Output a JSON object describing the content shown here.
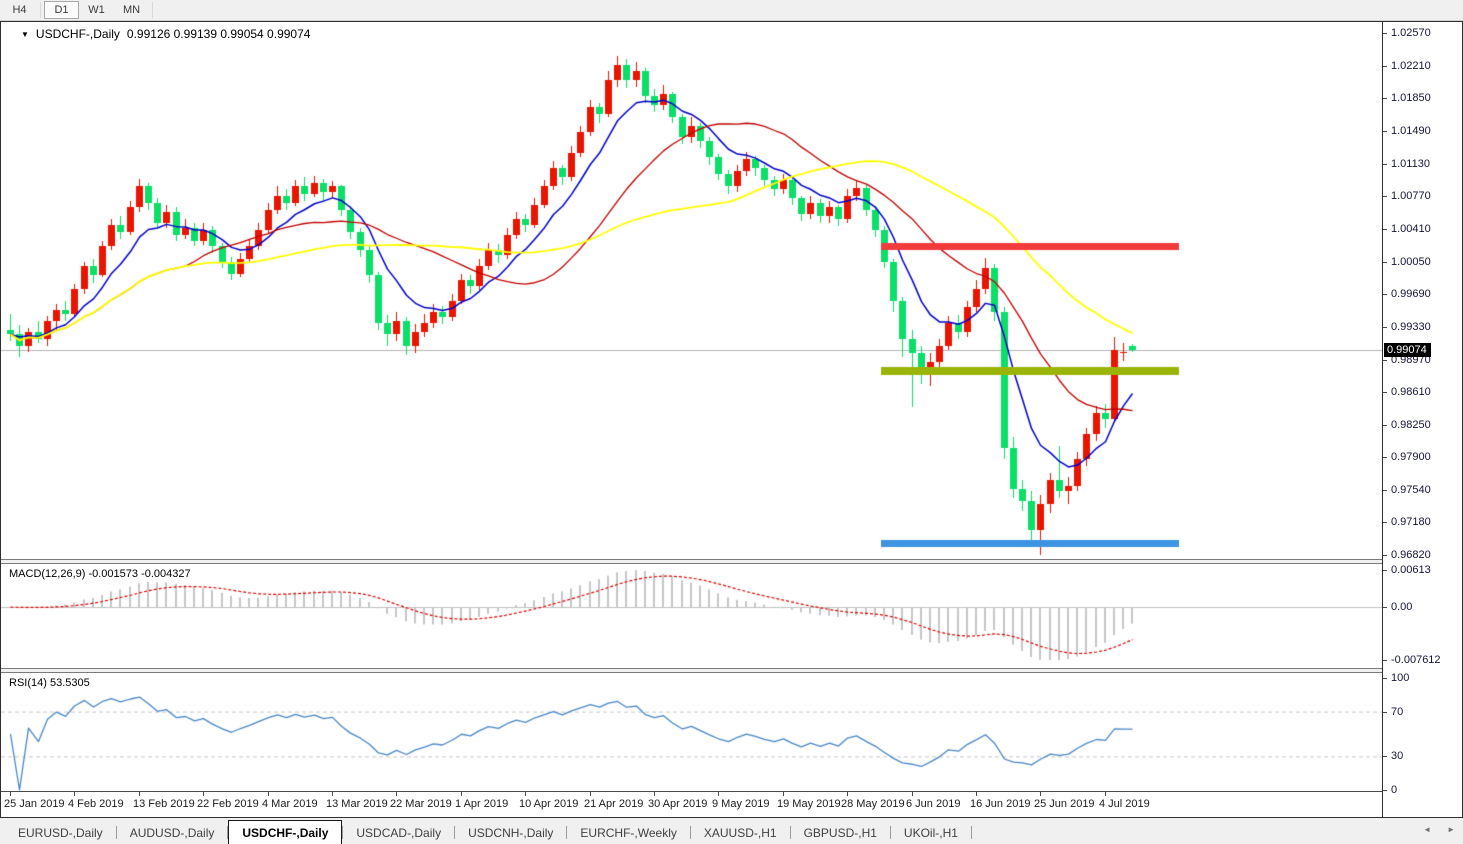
{
  "toolbar": {
    "buttons": [
      {
        "label": "H4",
        "active": false
      },
      {
        "label": "D1",
        "active": true
      },
      {
        "label": "W1",
        "active": false
      },
      {
        "label": "MN",
        "active": false
      }
    ]
  },
  "chart": {
    "title_symbol": "USDCHF-,Daily",
    "title_ohlc": "0.99126 0.99139 0.99054 0.99074",
    "macd_label": "MACD(12,26,9) -0.001573 -0.004327",
    "rsi_label": "RSI(14) 53.5305",
    "price_tag": "0.99074"
  },
  "chart_data": {
    "type": "candlestick",
    "symbol": "USDCHF-",
    "timeframe": "Daily",
    "last_bar": {
      "open": 0.99126,
      "high": 0.99139,
      "low": 0.99054,
      "close": 0.99074
    },
    "current_price": 0.99074,
    "price_axis_labels": [
      "1.02570",
      "1.02210",
      "1.01850",
      "1.01490",
      "1.01130",
      "1.00770",
      "1.00410",
      "1.00050",
      "0.99690",
      "0.99330",
      "0.98970",
      "0.98610",
      "0.98250",
      "0.97900",
      "0.97540",
      "0.97180",
      "0.96820"
    ],
    "date_axis_labels": [
      {
        "label": "25 Jan 2019",
        "index": 0
      },
      {
        "label": "4 Feb 2019",
        "index": 7
      },
      {
        "label": "13 Feb 2019",
        "index": 14
      },
      {
        "label": "22 Feb 2019",
        "index": 21
      },
      {
        "label": "4 Mar 2019",
        "index": 28
      },
      {
        "label": "13 Mar 2019",
        "index": 35
      },
      {
        "label": "22 Mar 2019",
        "index": 42
      },
      {
        "label": "1 Apr 2019",
        "index": 49
      },
      {
        "label": "10 Apr 2019",
        "index": 56
      },
      {
        "label": "21 Apr 2019",
        "index": 63
      },
      {
        "label": "30 Apr 2019",
        "index": 70
      },
      {
        "label": "9 May 2019",
        "index": 77
      },
      {
        "label": "19 May 2019",
        "index": 84
      },
      {
        "label": "28 May 2019",
        "index": 91
      },
      {
        "label": "6 Jun 2019",
        "index": 98
      },
      {
        "label": "16 Jun 2019",
        "index": 105
      },
      {
        "label": "25 Jun 2019",
        "index": 112
      },
      {
        "label": "4 Jul 2019",
        "index": 119
      }
    ],
    "candles": [
      [
        0.993,
        0.9948,
        0.9918,
        0.9925
      ],
      [
        0.9925,
        0.9935,
        0.99,
        0.9912
      ],
      [
        0.9912,
        0.9932,
        0.9906,
        0.9928
      ],
      [
        0.9928,
        0.994,
        0.9916,
        0.992
      ],
      [
        0.992,
        0.9945,
        0.9912,
        0.994
      ],
      [
        0.994,
        0.9958,
        0.993,
        0.9952
      ],
      [
        0.9952,
        0.9962,
        0.994,
        0.9948
      ],
      [
        0.9948,
        0.998,
        0.9944,
        0.9975
      ],
      [
        0.9975,
        1.0005,
        0.997,
        1.0
      ],
      [
        1.0,
        1.0008,
        0.9982,
        0.999
      ],
      [
        0.999,
        1.0028,
        0.9988,
        1.0022
      ],
      [
        1.0022,
        1.0052,
        1.0018,
        1.0045
      ],
      [
        1.0045,
        1.0055,
        1.003,
        1.0038
      ],
      [
        1.0038,
        1.0072,
        1.0034,
        1.0065
      ],
      [
        1.0065,
        1.0096,
        1.006,
        1.0088
      ],
      [
        1.0088,
        1.0092,
        1.0062,
        1.007
      ],
      [
        1.007,
        1.0075,
        1.0042,
        1.0048
      ],
      [
        1.0048,
        1.0068,
        1.0042,
        1.006
      ],
      [
        1.006,
        1.0065,
        1.0028,
        1.0035
      ],
      [
        1.0035,
        1.0052,
        1.003,
        1.0042
      ],
      [
        1.0042,
        1.0048,
        1.0022,
        1.0028
      ],
      [
        1.0028,
        1.0048,
        1.0024,
        1.004
      ],
      [
        1.004,
        1.0044,
        1.0015,
        1.0022
      ],
      [
        1.0022,
        1.0026,
        0.9998,
        1.0005
      ],
      [
        1.0005,
        1.001,
        0.9985,
        0.9992
      ],
      [
        0.9992,
        1.0015,
        0.9988,
        1.0008
      ],
      [
        1.0008,
        1.003,
        1.0005,
        1.0022
      ],
      [
        1.0022,
        1.0048,
        1.0018,
        1.004
      ],
      [
        1.004,
        1.007,
        1.0036,
        1.0062
      ],
      [
        1.0062,
        1.0088,
        1.0058,
        1.0078
      ],
      [
        1.0078,
        1.0085,
        1.0062,
        1.007
      ],
      [
        1.007,
        1.0095,
        1.0066,
        1.0088
      ],
      [
        1.0088,
        1.0098,
        1.0072,
        1.008
      ],
      [
        1.008,
        1.01,
        1.0076,
        1.0092
      ],
      [
        1.0092,
        1.0096,
        1.0072,
        1.0082
      ],
      [
        1.0082,
        1.0094,
        1.0075,
        1.0088
      ],
      [
        1.0088,
        1.009,
        1.0055,
        1.0062
      ],
      [
        1.0062,
        1.0066,
        1.003,
        1.0038
      ],
      [
        1.0038,
        1.0042,
        1.001,
        1.0018
      ],
      [
        1.0018,
        1.0022,
        0.9982,
        0.999
      ],
      [
        0.999,
        0.9994,
        0.993,
        0.9938
      ],
      [
        0.9938,
        0.9946,
        0.9912,
        0.9925
      ],
      [
        0.9925,
        0.995,
        0.9918,
        0.994
      ],
      [
        0.994,
        0.9944,
        0.9902,
        0.9912
      ],
      [
        0.9912,
        0.9936,
        0.9905,
        0.9928
      ],
      [
        0.9928,
        0.9948,
        0.9922,
        0.9938
      ],
      [
        0.9938,
        0.9958,
        0.9932,
        0.995
      ],
      [
        0.995,
        0.9956,
        0.9936,
        0.9944
      ],
      [
        0.9944,
        0.997,
        0.994,
        0.9962
      ],
      [
        0.9962,
        0.9992,
        0.9958,
        0.9985
      ],
      [
        0.9985,
        0.999,
        0.997,
        0.9978
      ],
      [
        0.9978,
        1.0008,
        0.9974,
        1.0
      ],
      [
        1.0,
        1.0026,
        0.9996,
        1.0018
      ],
      [
        1.0018,
        1.0025,
        1.0004,
        1.0012
      ],
      [
        1.0012,
        1.0042,
        1.0008,
        1.0035
      ],
      [
        1.0035,
        1.006,
        1.003,
        1.0052
      ],
      [
        1.0052,
        1.0058,
        1.0038,
        1.0045
      ],
      [
        1.0045,
        1.0075,
        1.0042,
        1.0068
      ],
      [
        1.0068,
        1.0095,
        1.0064,
        1.0088
      ],
      [
        1.0088,
        1.0116,
        1.0084,
        1.0108
      ],
      [
        1.0108,
        1.0112,
        1.009,
        1.0098
      ],
      [
        1.0098,
        1.0132,
        1.0094,
        1.0125
      ],
      [
        1.0125,
        1.0155,
        1.012,
        1.0148
      ],
      [
        1.0148,
        1.0183,
        1.0144,
        1.0175
      ],
      [
        1.0175,
        1.018,
        1.0158,
        1.0168
      ],
      [
        1.0168,
        1.0215,
        1.0164,
        1.0205
      ],
      [
        1.0205,
        1.0232,
        1.0198,
        1.0222
      ],
      [
        1.0222,
        1.0228,
        1.0196,
        1.0205
      ],
      [
        1.0205,
        1.0225,
        1.0198,
        1.0215
      ],
      [
        1.0215,
        1.0218,
        1.018,
        1.0188
      ],
      [
        1.0188,
        1.0195,
        1.017,
        1.0178
      ],
      [
        1.0178,
        1.02,
        1.0172,
        1.019
      ],
      [
        1.019,
        1.0192,
        1.0158,
        1.0165
      ],
      [
        1.0165,
        1.0168,
        1.0135,
        1.0142
      ],
      [
        1.0142,
        1.0165,
        1.0136,
        1.0155
      ],
      [
        1.0155,
        1.0158,
        1.013,
        1.0138
      ],
      [
        1.0138,
        1.0142,
        1.0112,
        1.012
      ],
      [
        1.012,
        1.0124,
        1.0095,
        1.0102
      ],
      [
        1.0102,
        1.0106,
        1.008,
        1.0088
      ],
      [
        1.0088,
        1.0112,
        1.0082,
        1.0105
      ],
      [
        1.0105,
        1.0126,
        1.01,
        1.0118
      ],
      [
        1.0118,
        1.0122,
        1.01,
        1.0108
      ],
      [
        1.0108,
        1.0112,
        1.0088,
        1.0095
      ],
      [
        1.0095,
        1.01,
        1.0078,
        1.0085
      ],
      [
        1.0085,
        1.0102,
        1.008,
        1.0095
      ],
      [
        1.0095,
        1.0098,
        1.0068,
        1.0075
      ],
      [
        1.0075,
        1.0078,
        1.005,
        1.0058
      ],
      [
        1.0058,
        1.0078,
        1.0052,
        1.007
      ],
      [
        1.007,
        1.0074,
        1.0048,
        1.0055
      ],
      [
        1.0055,
        1.0072,
        1.0048,
        1.0065
      ],
      [
        1.0065,
        1.0068,
        1.0044,
        1.0052
      ],
      [
        1.0052,
        1.0085,
        1.0048,
        1.0078
      ],
      [
        1.0078,
        1.0095,
        1.0072,
        1.0086
      ],
      [
        1.0086,
        1.009,
        1.0055,
        1.0062
      ],
      [
        1.0062,
        1.0066,
        1.0032,
        1.004
      ],
      [
        1.004,
        1.0044,
        0.9998,
        1.0005
      ],
      [
        1.0005,
        1.0008,
        0.995,
        0.9962
      ],
      [
        0.9962,
        0.9966,
        0.99,
        0.992
      ],
      [
        0.992,
        0.993,
        0.9845,
        0.9905
      ],
      [
        0.9905,
        0.9912,
        0.987,
        0.988
      ],
      [
        0.988,
        0.9905,
        0.9868,
        0.9895
      ],
      [
        0.9895,
        0.992,
        0.9888,
        0.9912
      ],
      [
        0.9912,
        0.9945,
        0.9908,
        0.9938
      ],
      [
        0.9938,
        0.9946,
        0.992,
        0.9928
      ],
      [
        0.9928,
        0.9962,
        0.9922,
        0.9955
      ],
      [
        0.9955,
        0.9985,
        0.995,
        0.9975
      ],
      [
        0.9975,
        1.0009,
        0.997,
        0.9998
      ],
      [
        0.9998,
        1.0002,
        0.994,
        0.995
      ],
      [
        0.995,
        0.9955,
        0.9788,
        0.98
      ],
      [
        0.98,
        0.9812,
        0.9745,
        0.9755
      ],
      [
        0.9755,
        0.9765,
        0.973,
        0.9742
      ],
      [
        0.9742,
        0.9752,
        0.9695,
        0.971
      ],
      [
        0.971,
        0.9748,
        0.9682,
        0.9738
      ],
      [
        0.9738,
        0.9772,
        0.9728,
        0.9765
      ],
      [
        0.9765,
        0.9802,
        0.9745,
        0.9752
      ],
      [
        0.9752,
        0.9768,
        0.9738,
        0.9758
      ],
      [
        0.9758,
        0.9795,
        0.9752,
        0.9788
      ],
      [
        0.9788,
        0.9822,
        0.978,
        0.9815
      ],
      [
        0.9815,
        0.9846,
        0.9808,
        0.9838
      ],
      [
        0.9838,
        0.9848,
        0.9822,
        0.9832
      ],
      [
        0.9832,
        0.9922,
        0.9828,
        0.9908
      ],
      [
        0.9904,
        0.9916,
        0.9896,
        0.9906
      ],
      [
        0.99126,
        0.99139,
        0.99054,
        0.99074
      ]
    ],
    "moving_averages": [
      {
        "name": "fast-ma",
        "type": "ema",
        "period": 8,
        "color": "#0000c8",
        "width": 1.5
      },
      {
        "name": "mid-ma",
        "type": "sma",
        "period": 20,
        "color": "#c00000",
        "width": 1.3
      },
      {
        "name": "slow-ma",
        "type": "sma",
        "period": 40,
        "color": "#ffff00",
        "width": 1.8
      }
    ],
    "horizontal_lines": [
      {
        "name": "resistance-line",
        "price": 1.0022,
        "color": "#f23b3b",
        "thickness": 7,
        "from_index": 95,
        "to_index": 127.4
      },
      {
        "name": "mid-support-line",
        "price": 0.9885,
        "color": "#9ab408",
        "thickness": 8,
        "from_index": 95,
        "to_index": 127.4
      },
      {
        "name": "lower-support-line",
        "price": 0.9695,
        "color": "#3b93e1",
        "thickness": 7,
        "from_index": 95,
        "to_index": 127.4
      }
    ],
    "macd": {
      "params": [
        12,
        26,
        9
      ],
      "value": -0.001573,
      "signal_value": -0.004327,
      "axis_labels": [
        "0.00613",
        "0.00",
        "-0.007612"
      ]
    },
    "rsi": {
      "period": 14,
      "value": 53.5305,
      "axis_labels": [
        "100",
        "70",
        "30",
        "0"
      ],
      "level_lines": [
        70,
        30
      ]
    }
  },
  "colors": {
    "up_candle": "#ea1500",
    "down_candle": "#0adf68",
    "current_price_line": "#b4b4b4",
    "macd_histogram": "#c6c6c6",
    "macd_signal": "#e00000",
    "zero_line": "#c0c0c0",
    "rsi_line": "#4a86c8",
    "rsi_level": "#c8c8c8"
  },
  "tabs": {
    "items": [
      {
        "label": "EURUSD-,Daily",
        "active": false
      },
      {
        "label": "AUDUSD-,Daily",
        "active": false
      },
      {
        "label": "USDCHF-,Daily",
        "active": true
      },
      {
        "label": "USDCAD-,Daily",
        "active": false
      },
      {
        "label": "USDCNH-,Daily",
        "active": false
      },
      {
        "label": "EURCHF-,Weekly",
        "active": false
      },
      {
        "label": "XAUUSD-,H1",
        "active": false
      },
      {
        "label": "GBPUSD-,H1",
        "active": false
      },
      {
        "label": "UKOil-,H1",
        "active": false
      }
    ],
    "scroll_left": "◄",
    "scroll_right": "►"
  }
}
